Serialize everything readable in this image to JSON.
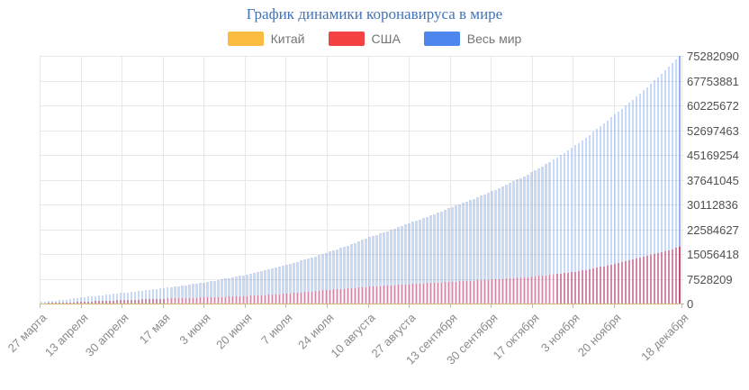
{
  "chart": {
    "title": "График динамики коронавируса в мире",
    "legend": [
      {
        "id": "china",
        "label": "Китай",
        "color": "#FBBC3F"
      },
      {
        "id": "usa",
        "label": "США",
        "color": "#F44242"
      },
      {
        "id": "world",
        "label": "Весь мир",
        "color": "#4D86EC"
      }
    ]
  },
  "chart_data": {
    "type": "bar",
    "title": "График динамики коронавируса в мире",
    "xlabel": "",
    "ylabel": "",
    "ylim": [
      0,
      75282090
    ],
    "grid": true,
    "legend_position": "top",
    "y_axis_side": "right",
    "y_ticks": [
      0,
      7528209,
      15056418,
      22584627,
      30112836,
      37641045,
      45169254,
      52697463,
      60225672,
      67753881,
      75282090
    ],
    "x_tick_labels": [
      "27 марта",
      "13 апреля",
      "30 апреля",
      "17 мая",
      "3 июня",
      "20 июня",
      "7 июля",
      "24 июля",
      "10 августа",
      "27 августа",
      "13 сентября",
      "30 сентября",
      "17 октября",
      "3 ноября",
      "20 ноября",
      "18 декабря"
    ],
    "x_tick_days": [
      0,
      17,
      34,
      51,
      68,
      85,
      102,
      119,
      136,
      153,
      170,
      187,
      204,
      221,
      238,
      266
    ],
    "bar_count": 178,
    "series": [
      {
        "name": "Китай",
        "color": "#FBBC3F",
        "values_at_ticks": [
          81897,
          82160,
          82862,
          82947,
          83022,
          83352,
          83572,
          83729,
          84668,
          85013,
          85194,
          85403,
          85672,
          86087,
          86431,
          86829
        ]
      },
      {
        "name": "США",
        "color": "#F44242",
        "values_at_ticks": [
          101657,
          580619,
          1069424,
          1486757,
          1851520,
          2255119,
          2981602,
          4112651,
          5094400,
          5866305,
          6554754,
          7233043,
          8106752,
          9484583,
          11906266,
          17214177
        ]
      },
      {
        "name": "Весь мир",
        "color": "#4D86EC",
        "values_at_ticks": [
          593291,
          1918138,
          3256846,
          4710614,
          6476728,
          8753396,
          11766024,
          15480452,
          19993296,
          24361103,
          28975875,
          33870479,
          39674072,
          47336183,
          56946087,
          75282090
        ]
      }
    ]
  },
  "style": {
    "title_color": "#4473B4",
    "legend_label_color": "#757575",
    "grid_color": "#e8e8e8",
    "axis_color": "#b9b9b9",
    "tick_color": "#b9b9b9",
    "y_label_color": "#4f4f4f",
    "x_label_color": "#8a8a8a",
    "world_bar": "rgba(77,134,236,0.30)",
    "world_bar_final": "rgba(77,134,236,0.62)",
    "usa_bar": "rgba(219,55,90,0.50)",
    "usa_bar_final": "rgba(219,55,90,0.85)",
    "china_bar": "rgba(251,188,63,0.90)"
  }
}
